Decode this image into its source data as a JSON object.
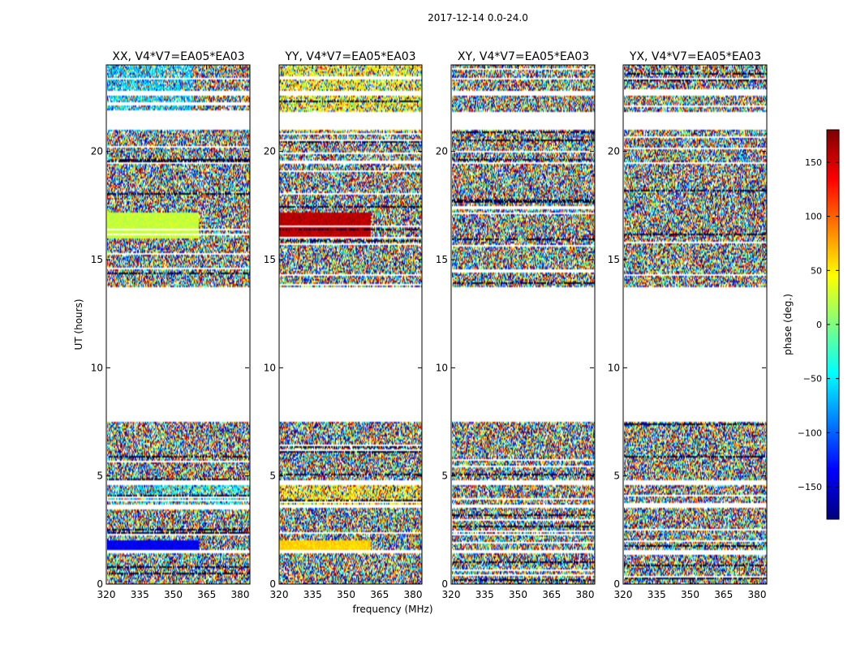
{
  "chart_data": {
    "type": "heatmap",
    "suptitle": "2017-12-14 0.0-24.0",
    "panels": [
      {
        "title": "XX, V4*V7=EA05*EA03",
        "tint": "blue"
      },
      {
        "title": "YY, V4*V7=EA05*EA03",
        "tint": "warm"
      },
      {
        "title": "XY, V4*V7=EA05*EA03",
        "tint": "none"
      },
      {
        "title": "YX, V4*V7=EA05*EA03",
        "tint": "none"
      }
    ],
    "xlabel": "frequency (MHz)",
    "ylabel": "UT (hours)",
    "xlim": [
      320,
      384
    ],
    "ylim": [
      0,
      24
    ],
    "xticks": [
      320,
      335,
      350,
      365,
      380
    ],
    "yticks": [
      0,
      5,
      10,
      15,
      20
    ],
    "colorbar": {
      "label": "phase (deg.)",
      "range": [
        -180,
        180
      ],
      "ticks": [
        150,
        100,
        50,
        0,
        -50,
        -100,
        -150
      ],
      "tick_labels": [
        "150",
        "100",
        "50",
        "0",
        "−50",
        "−100",
        "−150"
      ],
      "colormap": "jet"
    },
    "data_gaps_hours": [
      [
        7.5,
        13.7
      ],
      [
        21.0,
        21.8
      ],
      [
        19.4,
        19.5
      ],
      [
        4.6,
        4.8
      ],
      [
        3.5,
        3.7
      ],
      [
        1.4,
        1.6
      ],
      [
        22.6,
        22.8
      ],
      [
        23.3,
        23.4
      ]
    ],
    "coherent_bands": [
      {
        "range": [
          16.0,
          17.2
        ],
        "panel": 0,
        "phase_deg": 25
      },
      {
        "range": [
          16.0,
          17.2
        ],
        "panel": 1,
        "phase_deg": 160
      },
      {
        "range": [
          1.6,
          2.0
        ],
        "panel": 0,
        "phase_deg": -140
      },
      {
        "range": [
          1.6,
          2.0
        ],
        "panel": 1,
        "phase_deg": 60
      }
    ]
  }
}
